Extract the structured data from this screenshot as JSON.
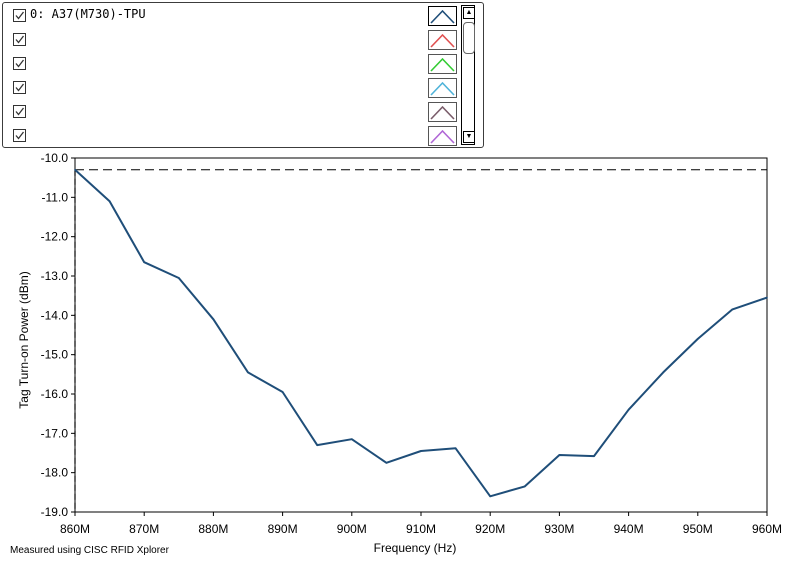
{
  "legend": {
    "items": [
      {
        "label": "0: A37(M730)-TPU",
        "checked": true,
        "color": "#1f4e79"
      },
      {
        "label": "",
        "checked": true,
        "color": "#e05050"
      },
      {
        "label": "",
        "checked": true,
        "color": "#33cc33"
      },
      {
        "label": "",
        "checked": true,
        "color": "#4fb3d9"
      },
      {
        "label": "",
        "checked": true,
        "color": "#7a5c6a"
      },
      {
        "label": "",
        "checked": true,
        "color": "#b066d6"
      }
    ],
    "scroll_up_icon": "triangle-up-icon",
    "scroll_down_icon": "triangle-down-icon"
  },
  "chart_data": {
    "type": "line",
    "title": "",
    "xlabel": "Frequency (Hz)",
    "ylabel": "Tag Turn-on Power (dBm)",
    "x": [
      860,
      865,
      870,
      875,
      880,
      885,
      890,
      895,
      900,
      905,
      910,
      915,
      920,
      925,
      930,
      935,
      940,
      945,
      950,
      955,
      960
    ],
    "x_unit_suffix": "M",
    "xlim": [
      860,
      960
    ],
    "ylim": [
      -19.0,
      -10.0
    ],
    "x_ticks": [
      "860M",
      "870M",
      "880M",
      "890M",
      "900M",
      "910M",
      "920M",
      "930M",
      "940M",
      "950M",
      "960M"
    ],
    "y_ticks": [
      "-10.0",
      "-11.0",
      "-12.0",
      "-13.0",
      "-14.0",
      "-15.0",
      "-16.0",
      "-17.0",
      "-18.0",
      "-19.0"
    ],
    "series": [
      {
        "name": "0: A37(M730)-TPU",
        "color": "#1f4e79",
        "values": [
          -10.3,
          -11.1,
          -12.65,
          -13.05,
          -14.1,
          -15.45,
          -15.95,
          -17.3,
          -17.15,
          -17.75,
          -17.45,
          -17.38,
          -18.6,
          -18.35,
          -17.55,
          -17.58,
          -16.4,
          -15.45,
          -14.6,
          -13.85,
          -13.55
        ]
      }
    ],
    "reference_line": {
      "y": -10.3,
      "style": "dashed",
      "color": "#000000"
    },
    "grid": false,
    "legend_position": "top-left"
  },
  "footnote": "Measured using CISC RFID Xplorer"
}
